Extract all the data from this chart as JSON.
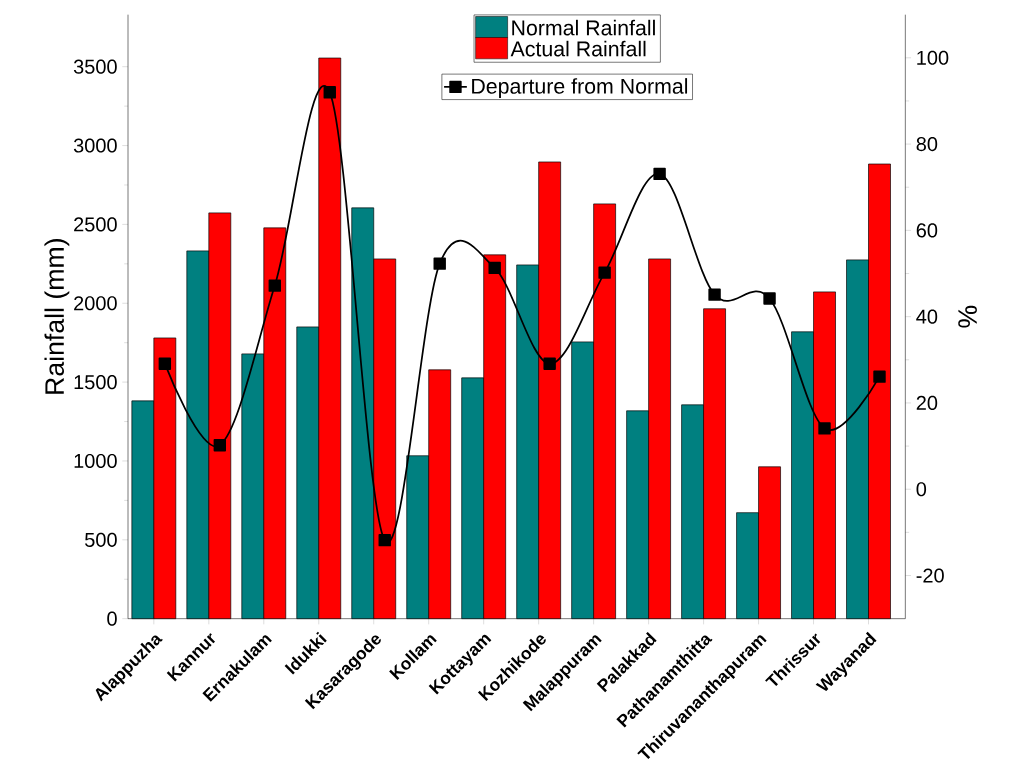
{
  "chart_data": {
    "type": "bar",
    "categories": [
      "Alappuzha",
      "Kannur",
      "Ernakulam",
      "Idukki",
      "Kasaragode",
      "Kollam",
      "Kottayam",
      "Kozhikode",
      "Malappuram",
      "Palakkad",
      "Pathanamthitta",
      "Thiruvananthapuram",
      "Thrissur",
      "Wayanad"
    ],
    "series": [
      {
        "name": "Normal Rainfall",
        "color": "#008080",
        "values": [
          1381,
          2332,
          1679,
          1850,
          2605,
          1033,
          1527,
          2243,
          1755,
          1318,
          1356,
          672,
          1819,
          2275
        ]
      },
      {
        "name": "Actual Rainfall",
        "color": "#ff0000",
        "values": [
          1780,
          2573,
          2478,
          3555,
          2281,
          1578,
          2307,
          2896,
          2630,
          2281,
          1965,
          963,
          2072,
          2883
        ]
      },
      {
        "name": "Departure from Normal",
        "type": "line",
        "axis": "y2",
        "color": "#000000",
        "marker": "square",
        "line_style": "solid",
        "values": [
          29.1,
          10.2,
          47.2,
          92.0,
          -11.8,
          52.3,
          51.3,
          29.1,
          50.2,
          73.1,
          45.1,
          44.2,
          14.1,
          26.1
        ]
      }
    ],
    "ylabel": "Rainfall (mm)",
    "y2label": "%",
    "ylim": [
      0,
      3830
    ],
    "yticks": [
      0,
      500,
      1000,
      1500,
      2000,
      2500,
      3000,
      3500
    ],
    "y2lim": [
      -30,
      110
    ],
    "y2ticks": [
      -20,
      0,
      20,
      40,
      60,
      80,
      100
    ],
    "legend": "top"
  }
}
